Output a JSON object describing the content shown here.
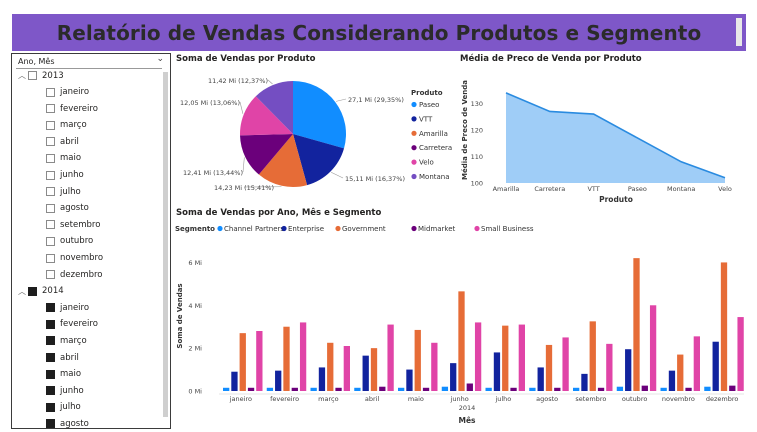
{
  "title": "Relatório de Vendas Considerando Produtos e Segmento",
  "slicer": {
    "header": "Ano, Mês",
    "years": [
      {
        "year": "2013",
        "expanded": true,
        "selected": false,
        "months": [
          "janeiro",
          "fevereiro",
          "março",
          "abril",
          "maio",
          "junho",
          "julho",
          "agosto",
          "setembro",
          "outubro",
          "novembro",
          "dezembro"
        ]
      },
      {
        "year": "2014",
        "expanded": true,
        "selected": true,
        "months": [
          "janeiro",
          "fevereiro",
          "março",
          "abril",
          "maio",
          "junho",
          "julho",
          "agosto"
        ]
      }
    ]
  },
  "pie": {
    "title": "Soma de Vendas por Produto",
    "legend_title": "Produto"
  },
  "area": {
    "title": "Média de Preco de Venda por Produto",
    "ylabel": "Média de Preco de Venda",
    "xlabel": "Produto"
  },
  "bars": {
    "title": "Soma de Vendas por Ano, Mês e Segmento",
    "legend_title": "Segmento",
    "ylabel": "Soma de Vendas",
    "xlabel": "Mês",
    "year_label": "2014"
  },
  "colors": {
    "title_bar": "#7e57c8",
    "paseo": "#118dff",
    "vtt": "#12239e",
    "amarilla": "#e66c37",
    "carretera": "#6b007b",
    "velo": "#e044a7",
    "montana": "#744ec2",
    "area_fill": "#9fcdf7",
    "area_line": "#2a8be0"
  },
  "chart_data": [
    {
      "type": "pie",
      "title": "Soma de Vendas por Produto",
      "legend_title": "Produto",
      "legend": [
        "Paseo",
        "VTT",
        "Amarilla",
        "Carretera",
        "Velo",
        "Montana"
      ],
      "slices": [
        {
          "name": "Paseo",
          "value": 27.1,
          "label": "27,1 Mi (29,35%)",
          "color": "#118dff"
        },
        {
          "name": "VTT",
          "value": 15.11,
          "label": "15,11 Mi (16,37%)",
          "color": "#12239e"
        },
        {
          "name": "Amarilla",
          "value": 14.23,
          "label": "14,23 Mi (15,41%)",
          "color": "#e66c37"
        },
        {
          "name": "Carretera",
          "value": 12.41,
          "label": "12,41 Mi (13,44%)",
          "color": "#6b007b"
        },
        {
          "name": "Velo",
          "value": 12.05,
          "label": "12,05 Mi (13,06%)",
          "color": "#e044a7"
        },
        {
          "name": "Montana",
          "value": 11.42,
          "label": "11,42 Mi (12,37%)",
          "color": "#744ec2"
        }
      ]
    },
    {
      "type": "area",
      "title": "Média de Preco de Venda por Produto",
      "xlabel": "Produto",
      "ylabel": "Média de Preco de Venda",
      "categories": [
        "Amarilla",
        "Carretera",
        "VTT",
        "Paseo",
        "Montana",
        "Velo"
      ],
      "values": [
        134,
        127,
        126,
        117,
        108,
        102
      ],
      "ylim": [
        100,
        140
      ],
      "yticks": [
        "100",
        "110",
        "120",
        "130"
      ]
    },
    {
      "type": "bar",
      "title": "Soma de Vendas por Ano, Mês e Segmento",
      "xlabel": "Mês",
      "ylabel": "Soma de Vendas",
      "legend_title": "Segmento",
      "ylim": [
        0,
        7
      ],
      "yticks": [
        "0 Mi",
        "2 Mi",
        "4 Mi",
        "6 Mi"
      ],
      "categories": [
        "janeiro",
        "fevereiro",
        "março",
        "abril",
        "maio",
        "junho",
        "julho",
        "agosto",
        "setembro",
        "outubro",
        "novembro",
        "dezembro"
      ],
      "group_label": "2014",
      "series": [
        {
          "name": "Channel Partners",
          "color": "#118dff",
          "values": [
            0.15,
            0.15,
            0.15,
            0.15,
            0.15,
            0.2,
            0.15,
            0.15,
            0.15,
            0.2,
            0.15,
            0.2
          ]
        },
        {
          "name": "Enterprise",
          "color": "#12239e",
          "values": [
            0.9,
            0.95,
            1.1,
            1.65,
            1.0,
            1.3,
            1.8,
            1.1,
            0.8,
            1.95,
            0.95,
            2.3
          ]
        },
        {
          "name": "Government",
          "color": "#e66c37",
          "values": [
            2.7,
            3.0,
            2.25,
            2.0,
            2.85,
            4.65,
            3.05,
            2.15,
            3.25,
            6.2,
            1.7,
            6.0
          ]
        },
        {
          "name": "Midmarket",
          "color": "#6b007b",
          "values": [
            0.15,
            0.15,
            0.15,
            0.2,
            0.15,
            0.35,
            0.15,
            0.15,
            0.15,
            0.25,
            0.15,
            0.25
          ]
        },
        {
          "name": "Small Business",
          "color": "#e044a7",
          "values": [
            2.8,
            3.2,
            2.1,
            3.1,
            2.25,
            3.2,
            3.1,
            2.5,
            2.2,
            4.0,
            2.55,
            3.45
          ]
        }
      ]
    }
  ]
}
